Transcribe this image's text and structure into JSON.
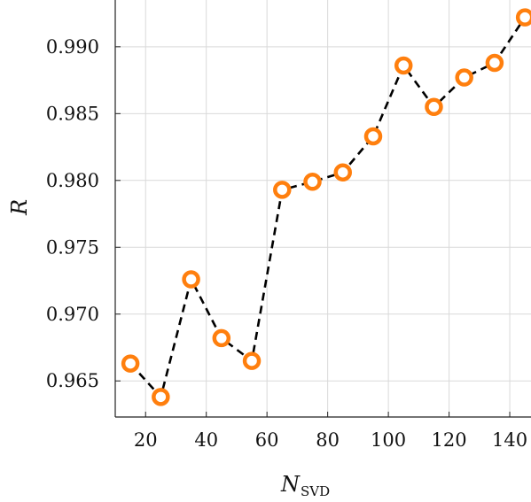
{
  "chart_data": {
    "type": "line",
    "title": "",
    "xlabel": "N",
    "xlabel_subscript": "SVD",
    "ylabel": "R",
    "xlim": [
      10,
      147
    ],
    "ylim": [
      0.9623,
      0.9935
    ],
    "x_ticks": [
      20,
      40,
      60,
      80,
      100,
      120,
      140
    ],
    "x_tick_labels": [
      "20",
      "40",
      "60",
      "80",
      "100",
      "120",
      "140"
    ],
    "y_ticks": [
      0.965,
      0.97,
      0.975,
      0.98,
      0.985,
      0.99
    ],
    "y_tick_labels": [
      "0.965",
      "0.970",
      "0.975",
      "0.980",
      "0.985",
      "0.990"
    ],
    "grid": true,
    "series": [
      {
        "x": [
          15,
          25,
          35,
          45,
          55,
          65,
          75,
          85,
          95,
          105,
          115,
          125,
          135,
          145
        ],
        "values": [
          0.9663,
          0.9638,
          0.9726,
          0.9682,
          0.9665,
          0.9793,
          0.9799,
          0.9806,
          0.9833,
          0.9886,
          0.9855,
          0.9877,
          0.9888,
          0.9922
        ],
        "line_color": "#000000",
        "line_style": "dashed",
        "marker": "circle-open",
        "marker_color": "#ff7f0e"
      }
    ]
  }
}
